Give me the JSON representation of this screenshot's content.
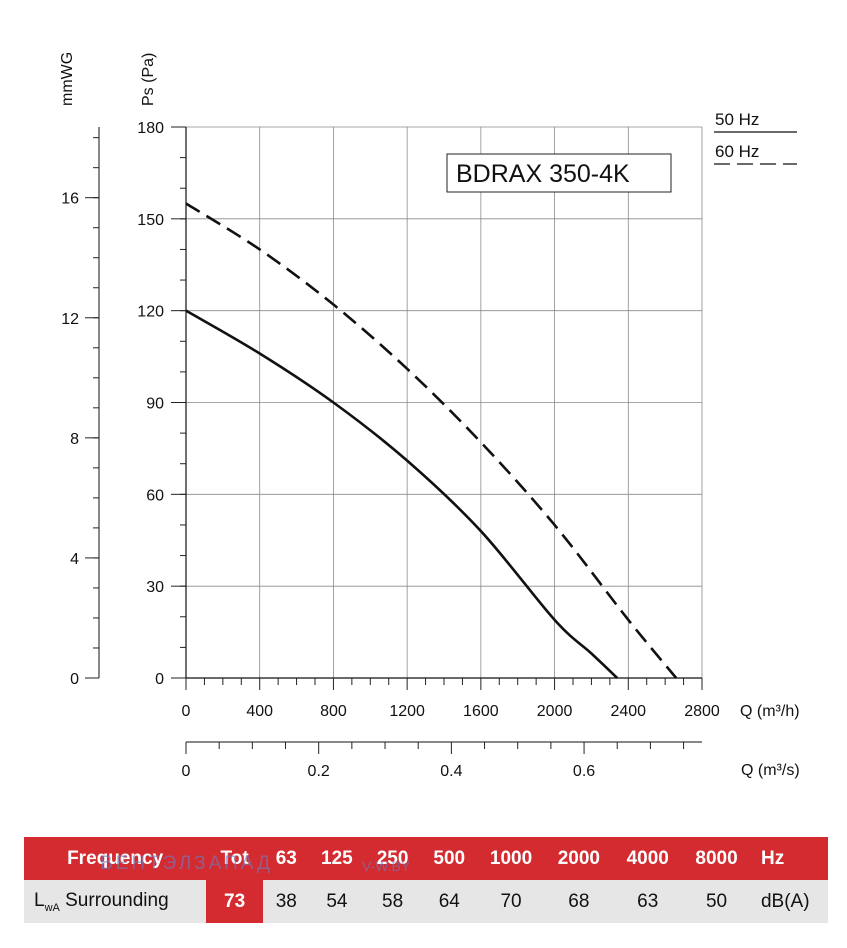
{
  "chart_data": {
    "type": "line",
    "title": "BDRAX 350-4K",
    "ylabel": "Ps (Pa)",
    "ylabel_secondary": "mmWG",
    "xlabel": "Q (m³/h)",
    "xlabel_secondary": "Q (m³/s)",
    "xlim": [
      0,
      2800
    ],
    "ylim": [
      0,
      180
    ],
    "x_ticks": [
      "0",
      "400",
      "800",
      "1200",
      "1600",
      "2000",
      "2400",
      "2800"
    ],
    "y_ticks": [
      "0",
      "30",
      "60",
      "90",
      "120",
      "150",
      "180"
    ],
    "y2_ticks": [
      "0",
      "4",
      "8",
      "12",
      "16"
    ],
    "x2_ticks": [
      "0",
      "0.2",
      "0.4",
      "0.6"
    ],
    "grid": true,
    "legend_position": "top-right",
    "series": [
      {
        "name": "50 Hz",
        "style": "solid",
        "x": [
          0,
          400,
          800,
          1200,
          1600,
          2000,
          2200,
          2340
        ],
        "y": [
          120,
          106,
          90,
          71,
          48,
          19,
          8,
          0
        ]
      },
      {
        "name": "60 Hz",
        "style": "dashed",
        "x": [
          0,
          400,
          800,
          1200,
          1600,
          2000,
          2400,
          2660
        ],
        "y": [
          155,
          140,
          122,
          101,
          77,
          50,
          19,
          0
        ]
      }
    ]
  },
  "sound_table": {
    "header": [
      "Frequency",
      "Tot",
      "63",
      "125",
      "250",
      "500",
      "1000",
      "2000",
      "4000",
      "8000",
      "Hz"
    ],
    "row_label_main": "L",
    "row_label_sub": "wA",
    "row_label_rest": " Surrounding",
    "values": [
      "73",
      "38",
      "54",
      "58",
      "64",
      "70",
      "68",
      "63",
      "50"
    ],
    "unit": "dB(A)"
  },
  "watermark": {
    "brand": "ВЕНТЭЛЗАПАД",
    "site": "V-W.BY"
  }
}
